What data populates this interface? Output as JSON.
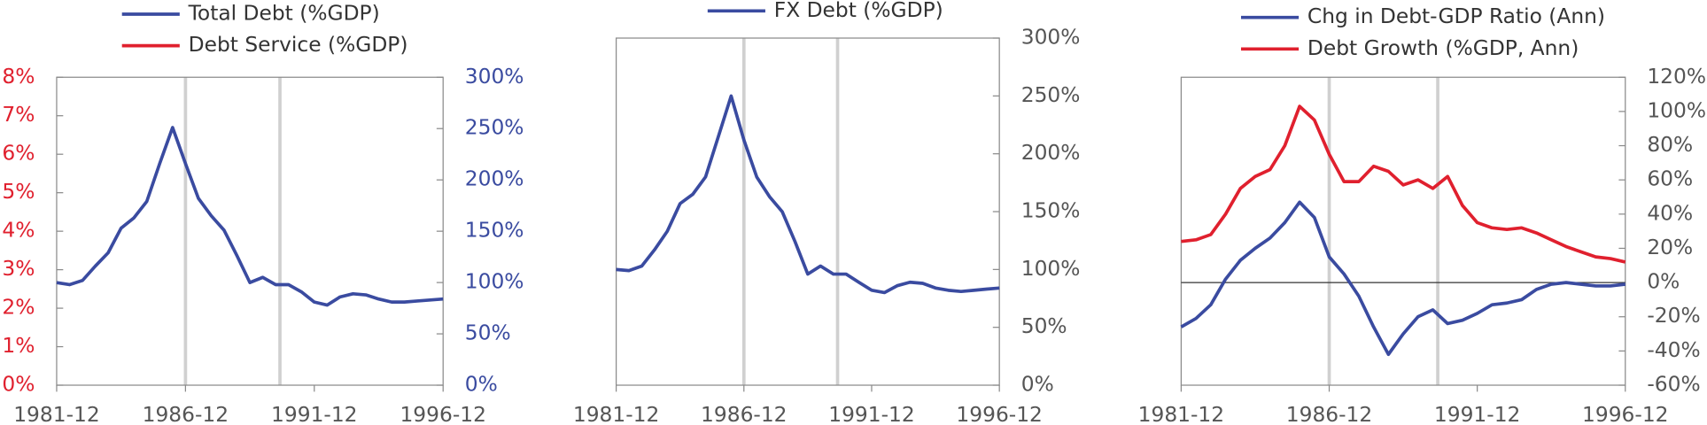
{
  "chart_data": [
    {
      "type": "line",
      "x": [
        "1981-12",
        "1982-06",
        "1982-12",
        "1983-06",
        "1983-12",
        "1984-06",
        "1984-12",
        "1985-06",
        "1985-12",
        "1986-06",
        "1986-12",
        "1987-06",
        "1987-12",
        "1988-06",
        "1988-12",
        "1989-06",
        "1989-12",
        "1990-06",
        "1990-12",
        "1991-06",
        "1991-12",
        "1992-06",
        "1992-12",
        "1993-06",
        "1993-12",
        "1994-06",
        "1994-12",
        "1995-06",
        "1995-12",
        "1996-06",
        "1996-12"
      ],
      "xlim": [
        "1981-12",
        "1996-12"
      ],
      "xticks": [
        "1981-12",
        "1986-12",
        "1991-12",
        "1996-12"
      ],
      "vlines": [
        "1986-12",
        "1990-08"
      ],
      "ylim": [
        0,
        8
      ],
      "yticks": [
        {
          "value": 0,
          "label": "0%"
        },
        {
          "value": 1,
          "label": "1%"
        },
        {
          "value": 2,
          "label": "2%"
        },
        {
          "value": 3,
          "label": "3%"
        },
        {
          "value": 4,
          "label": "4%"
        },
        {
          "value": 5,
          "label": "5%"
        },
        {
          "value": 6,
          "label": "6%"
        },
        {
          "value": 7,
          "label": "7%"
        },
        {
          "value": 8,
          "label": "8%"
        }
      ],
      "y2lim": [
        0,
        300
      ],
      "y2ticks": [
        {
          "value": 0,
          "label": "0%"
        },
        {
          "value": 50,
          "label": "50%"
        },
        {
          "value": 100,
          "label": "100%"
        },
        {
          "value": 150,
          "label": "150%"
        },
        {
          "value": 200,
          "label": "200%"
        },
        {
          "value": 250,
          "label": "250%"
        },
        {
          "value": 300,
          "label": "300%"
        }
      ],
      "series": [
        {
          "name": "Total Debt (%GDP)",
          "color": "#3a4ba0",
          "axis": "y2",
          "values": [
            100,
            98,
            102,
            116,
            129,
            153,
            163,
            179,
            216,
            251,
            216,
            182,
            165,
            151,
            126,
            100,
            105,
            98,
            98,
            91,
            81,
            78,
            86,
            89,
            88,
            84,
            81,
            81,
            82,
            83,
            84
          ]
        },
        {
          "name": "Debt Service (%GDP)",
          "color": "#e0202e",
          "values": [
            null,
            null,
            null,
            null,
            null,
            null,
            null,
            null,
            null,
            null,
            null,
            null,
            null,
            null,
            null,
            null,
            null,
            null,
            null,
            null,
            null,
            null,
            null,
            null,
            null,
            null,
            null,
            null,
            null,
            null,
            null
          ]
        }
      ]
    },
    {
      "type": "line",
      "x": [
        "1981-12",
        "1982-06",
        "1982-12",
        "1983-06",
        "1983-12",
        "1984-06",
        "1984-12",
        "1985-06",
        "1985-12",
        "1986-06",
        "1986-12",
        "1987-06",
        "1987-12",
        "1988-06",
        "1988-12",
        "1989-06",
        "1989-12",
        "1990-06",
        "1990-12",
        "1991-06",
        "1991-12",
        "1992-06",
        "1992-12",
        "1993-06",
        "1993-12",
        "1994-06",
        "1994-12",
        "1995-06",
        "1995-12",
        "1996-06",
        "1996-12"
      ],
      "xlim": [
        "1981-12",
        "1996-12"
      ],
      "xticks": [
        "1981-12",
        "1986-12",
        "1991-12",
        "1996-12"
      ],
      "vlines": [
        "1986-12",
        "1990-08"
      ],
      "ylim": [
        0,
        300
      ],
      "y_axis_side": "right",
      "yticks": [
        {
          "value": 0,
          "label": "0%"
        },
        {
          "value": 50,
          "label": "50%"
        },
        {
          "value": 100,
          "label": "100%"
        },
        {
          "value": 150,
          "label": "150%"
        },
        {
          "value": 200,
          "label": "200%"
        },
        {
          "value": 250,
          "label": "250%"
        },
        {
          "value": 300,
          "label": "300%"
        }
      ],
      "series": [
        {
          "name": "FX Debt (%GDP)",
          "color": "#3a4ba0",
          "values": [
            100,
            99,
            103,
            117,
            133,
            157,
            165,
            180,
            215,
            250,
            212,
            180,
            163,
            150,
            124,
            96,
            103,
            96,
            96,
            89,
            82,
            80,
            86,
            89,
            88,
            84,
            82,
            81,
            82,
            83,
            84
          ]
        }
      ]
    },
    {
      "type": "line",
      "x": [
        "1981-12",
        "1982-06",
        "1982-12",
        "1983-06",
        "1983-12",
        "1984-06",
        "1984-12",
        "1985-06",
        "1985-12",
        "1986-06",
        "1986-12",
        "1987-06",
        "1987-12",
        "1988-06",
        "1988-12",
        "1989-06",
        "1989-12",
        "1990-06",
        "1990-12",
        "1991-06",
        "1991-12",
        "1992-06",
        "1992-12",
        "1993-06",
        "1993-12",
        "1994-06",
        "1994-12",
        "1995-06",
        "1995-12",
        "1996-06",
        "1996-12"
      ],
      "xlim": [
        "1981-12",
        "1996-12"
      ],
      "xticks": [
        "1981-12",
        "1986-12",
        "1991-12",
        "1996-12"
      ],
      "vlines": [
        "1986-12",
        "1990-08"
      ],
      "ylim": [
        -60,
        120
      ],
      "y_axis_side": "right",
      "zero_line": true,
      "yticks": [
        {
          "value": -60,
          "label": "-60%"
        },
        {
          "value": -40,
          "label": "-40%"
        },
        {
          "value": -20,
          "label": "-20%"
        },
        {
          "value": 0,
          "label": "0%"
        },
        {
          "value": 20,
          "label": "20%"
        },
        {
          "value": 40,
          "label": "40%"
        },
        {
          "value": 60,
          "label": "60%"
        },
        {
          "value": 80,
          "label": "80%"
        },
        {
          "value": 100,
          "label": "100%"
        },
        {
          "value": 120,
          "label": "120%"
        }
      ],
      "series": [
        {
          "name": "Chg in Debt-GDP Ratio (Ann)",
          "color": "#3a4ba0",
          "values": [
            -26,
            -21,
            -13,
            2,
            13,
            20,
            26,
            35,
            47,
            38,
            15,
            5,
            -8,
            -26,
            -42,
            -30,
            -20,
            -16,
            -24,
            -22,
            -18,
            -13,
            -12,
            -10,
            -4,
            -1,
            0,
            -1,
            -2,
            -2,
            -1
          ]
        },
        {
          "name": "Debt Growth (%GDP, Ann)",
          "color": "#e0202e",
          "values": [
            24,
            25,
            28,
            40,
            55,
            62,
            66,
            80,
            103,
            95,
            75,
            59,
            59,
            68,
            65,
            57,
            60,
            55,
            62,
            45,
            35,
            32,
            31,
            32,
            29,
            25,
            21,
            18,
            15,
            14,
            12
          ]
        }
      ]
    }
  ]
}
